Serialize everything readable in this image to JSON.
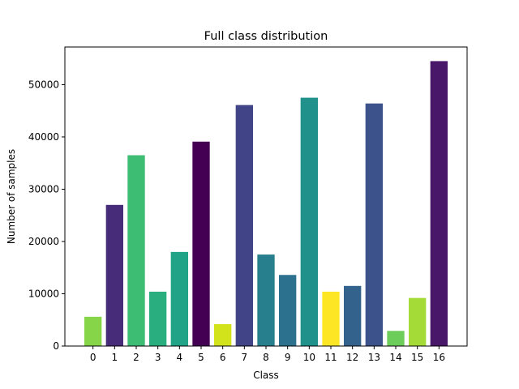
{
  "chart_data": {
    "type": "bar",
    "title": "Full class distribution",
    "xlabel": "Class",
    "ylabel": "Number of samples",
    "categories": [
      "0",
      "1",
      "2",
      "3",
      "4",
      "5",
      "6",
      "7",
      "8",
      "9",
      "10",
      "11",
      "12",
      "13",
      "14",
      "15",
      "16"
    ],
    "values": [
      5600,
      27000,
      36500,
      10400,
      18000,
      39100,
      4200,
      46100,
      17500,
      13600,
      47500,
      10400,
      11500,
      46400,
      2900,
      9200,
      54500
    ],
    "colors": [
      "#86d549",
      "#472c7a",
      "#3dbc74",
      "#29af7f",
      "#20a386",
      "#440154",
      "#d2e21b",
      "#414487",
      "#277f8e",
      "#2c728e",
      "#21918c",
      "#fde725",
      "#33638d",
      "#3b528b",
      "#6ccd5a",
      "#a5db36",
      "#481769"
    ],
    "ylim": [
      0,
      57200
    ],
    "yticks": [
      0,
      10000,
      20000,
      30000,
      40000,
      50000
    ],
    "ytick_labels": [
      "0",
      "10000",
      "20000",
      "30000",
      "40000",
      "50000"
    ],
    "grid": false,
    "legend": "none"
  }
}
